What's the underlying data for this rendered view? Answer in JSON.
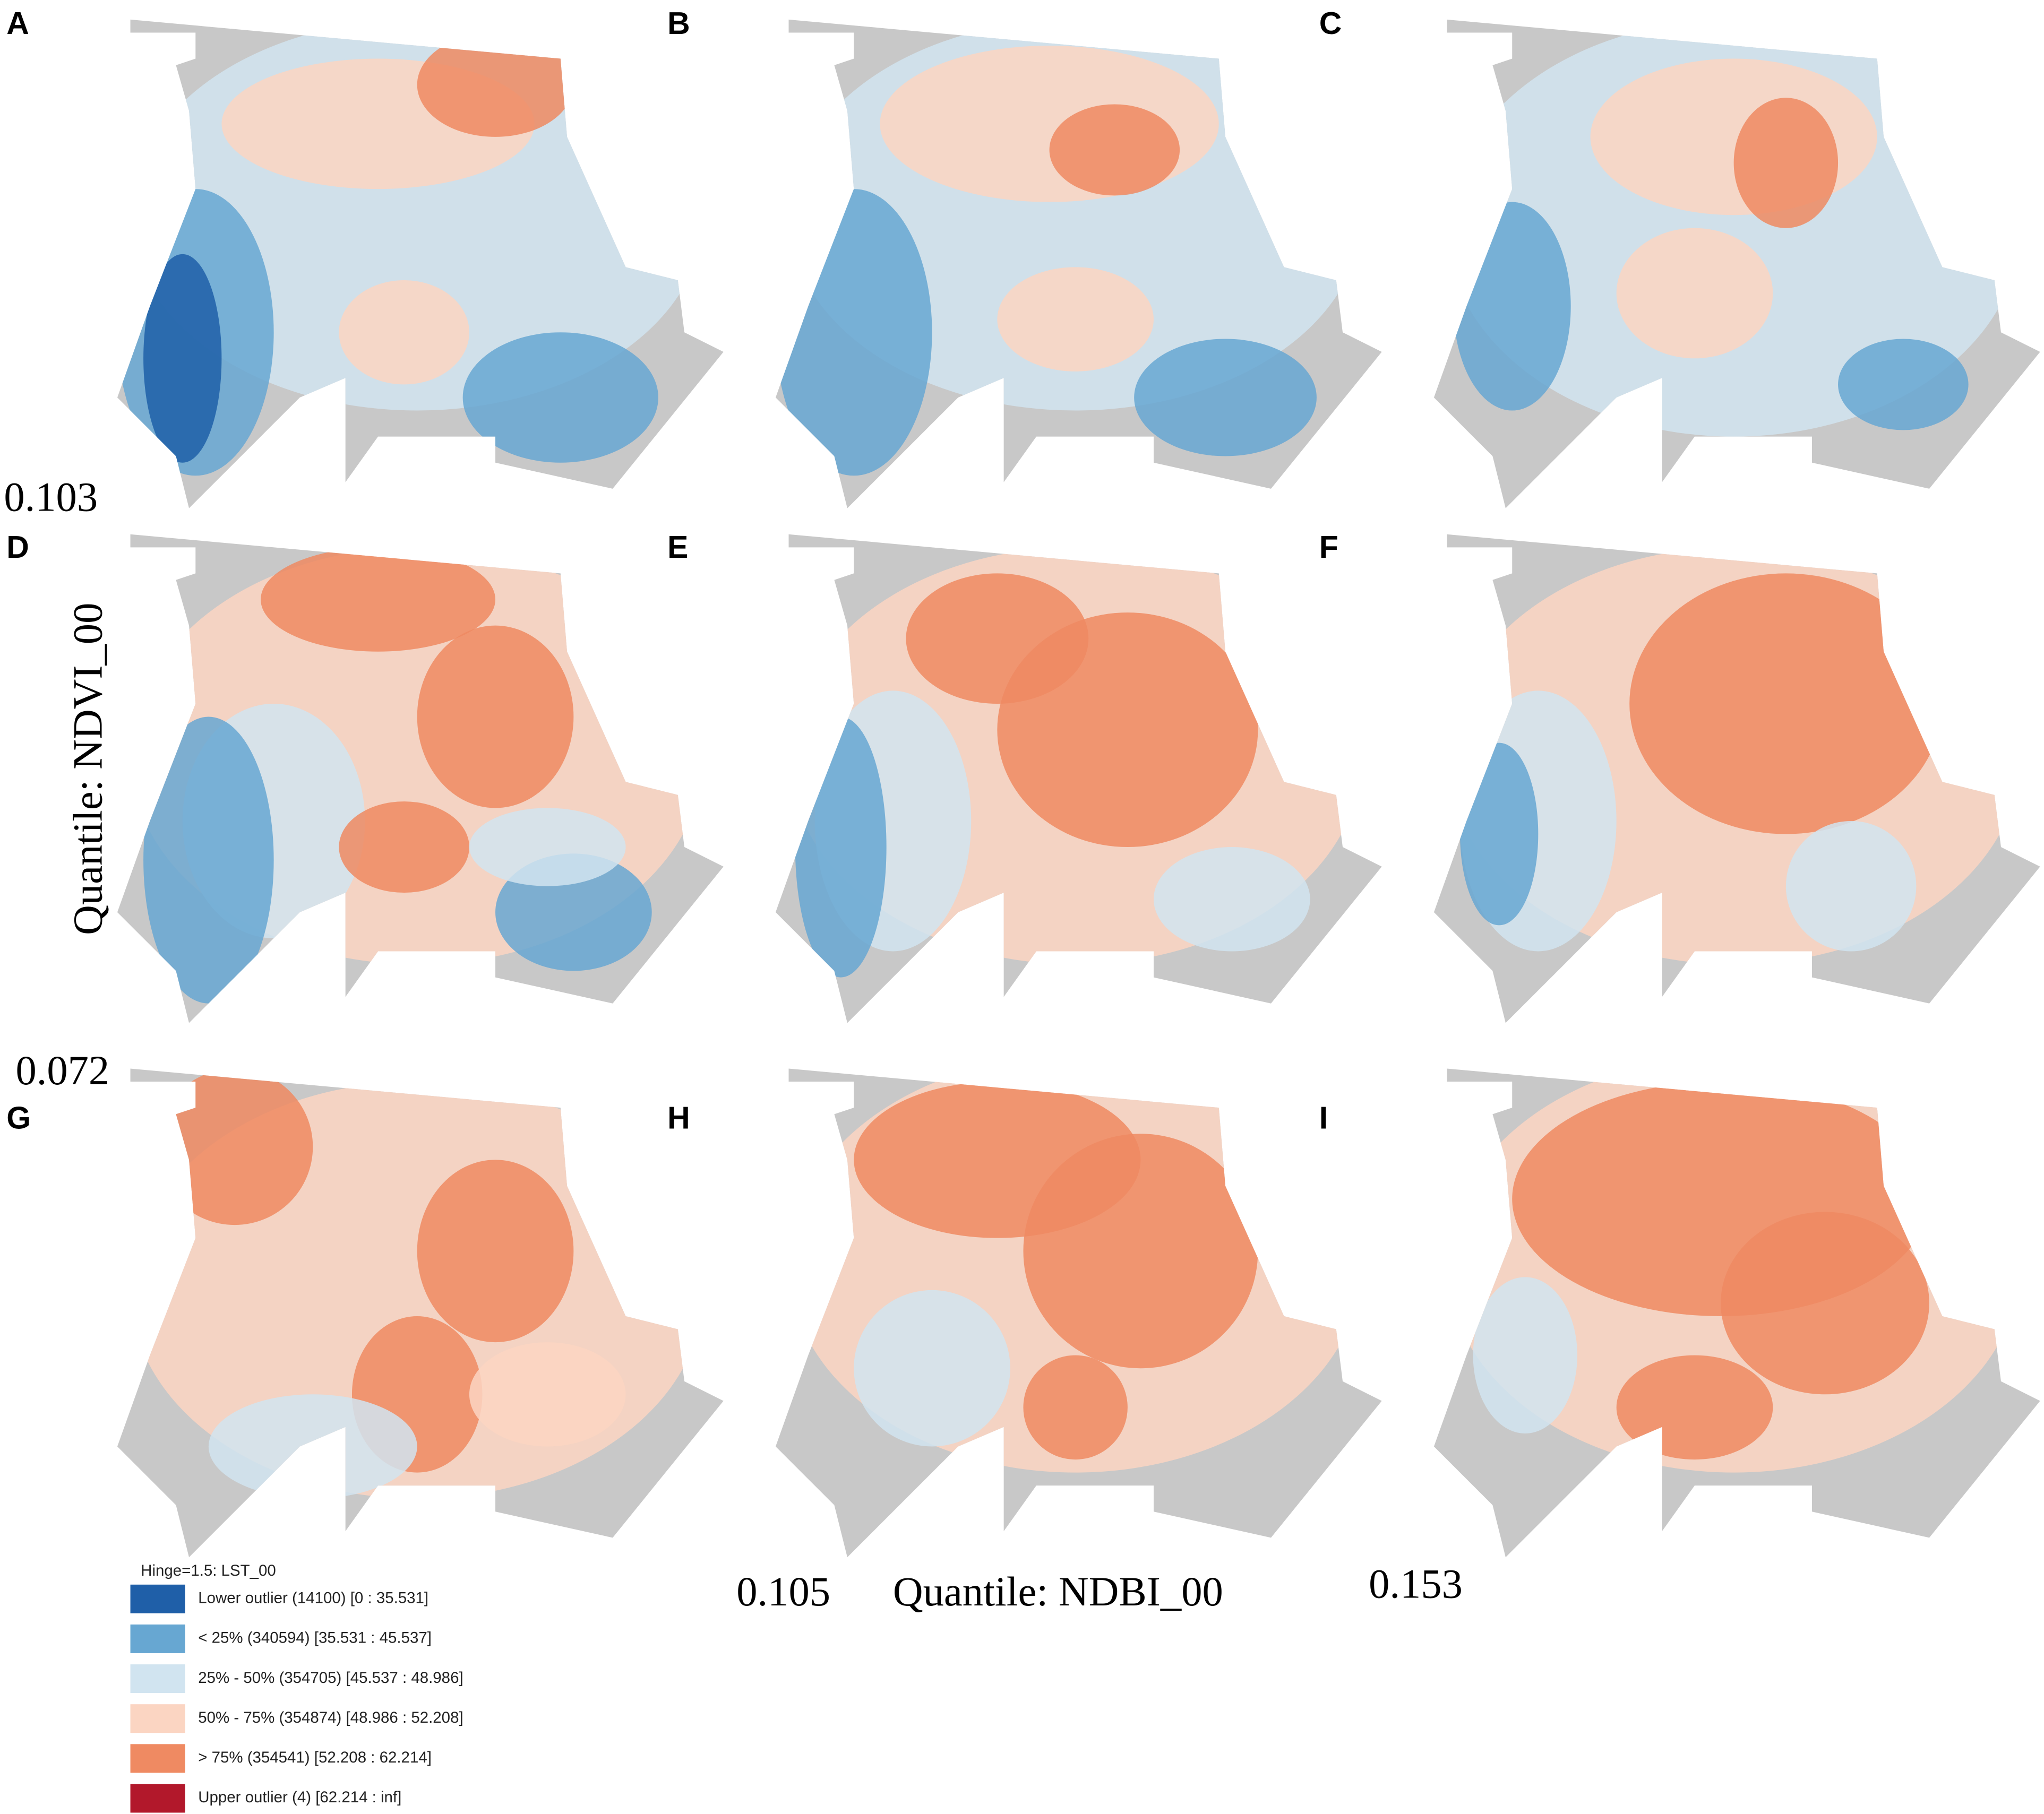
{
  "panels": [
    {
      "label": "A"
    },
    {
      "label": "B"
    },
    {
      "label": "C"
    },
    {
      "label": "D"
    },
    {
      "label": "E"
    },
    {
      "label": "F"
    },
    {
      "label": "G"
    },
    {
      "label": "H"
    },
    {
      "label": "I"
    }
  ],
  "annotations": {
    "row1_value": "0.103",
    "ndvi_title": "Quantile: NDVI_00",
    "row2_value": "0.072",
    "ndbi_left_value": "0.105",
    "ndbi_title": "Quantile: NDBI_00",
    "ndbi_right_value": "0.153"
  },
  "legend": {
    "title": "Hinge=1.5: LST_00",
    "items": [
      {
        "label": "Lower outlier (14100) [0 : 35.531]",
        "color": "#1f5fa8"
      },
      {
        "label": "< 25% (340594) [35.531 : 45.537]",
        "color": "#67a7d2"
      },
      {
        "label": "25% - 50% (354705) [45.537 : 48.986]",
        "color": "#d1e4f0"
      },
      {
        "label": "50% - 75% (354874) [48.986 : 52.208]",
        "color": "#fbd5c2"
      },
      {
        "label": "> 75% (354541) [52.208 : 62.214]",
        "color": "#ef8a62"
      },
      {
        "label": "Upper outlier (4) [62.214 : inf]",
        "color": "#b2182b"
      }
    ]
  }
}
